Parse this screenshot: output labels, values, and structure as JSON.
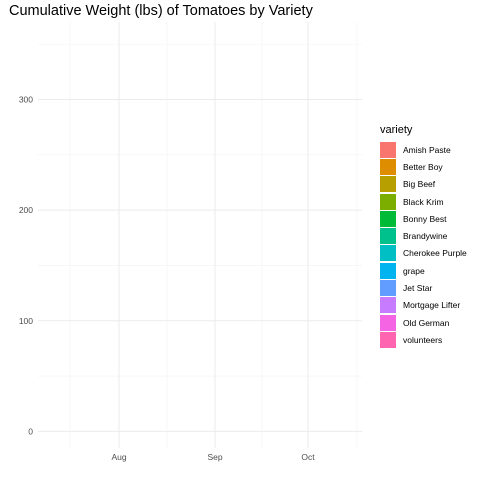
{
  "chart_data": {
    "type": "area",
    "title": "Cumulative Weight (lbs) of Tomatoes by Variety",
    "xlabel": "",
    "ylabel": "",
    "x_ticks": [
      "Aug",
      "Sep",
      "Oct"
    ],
    "y_ticks": [
      0,
      100,
      200,
      300
    ],
    "ylim": [
      -15,
      370
    ],
    "grid": true,
    "legend": {
      "title": "variety",
      "placement": "right"
    },
    "series": [
      {
        "name": "Amish Paste",
        "color": "#F8766D",
        "values": []
      },
      {
        "name": "Better Boy",
        "color": "#DE8C00",
        "values": []
      },
      {
        "name": "Big Beef",
        "color": "#B79F00",
        "values": []
      },
      {
        "name": "Black Krim",
        "color": "#7CAE00",
        "values": []
      },
      {
        "name": "Bonny Best",
        "color": "#00BA38",
        "values": []
      },
      {
        "name": "Brandywine",
        "color": "#00C08B",
        "values": []
      },
      {
        "name": "Cherokee Purple",
        "color": "#00BFC4",
        "values": []
      },
      {
        "name": "grape",
        "color": "#00B4F0",
        "values": []
      },
      {
        "name": "Jet Star",
        "color": "#619CFF",
        "values": []
      },
      {
        "name": "Mortgage Lifter",
        "color": "#C77CFF",
        "values": []
      },
      {
        "name": "Old German",
        "color": "#F564E3",
        "values": []
      },
      {
        "name": "volunteers",
        "color": "#FF64B0",
        "values": []
      }
    ]
  }
}
